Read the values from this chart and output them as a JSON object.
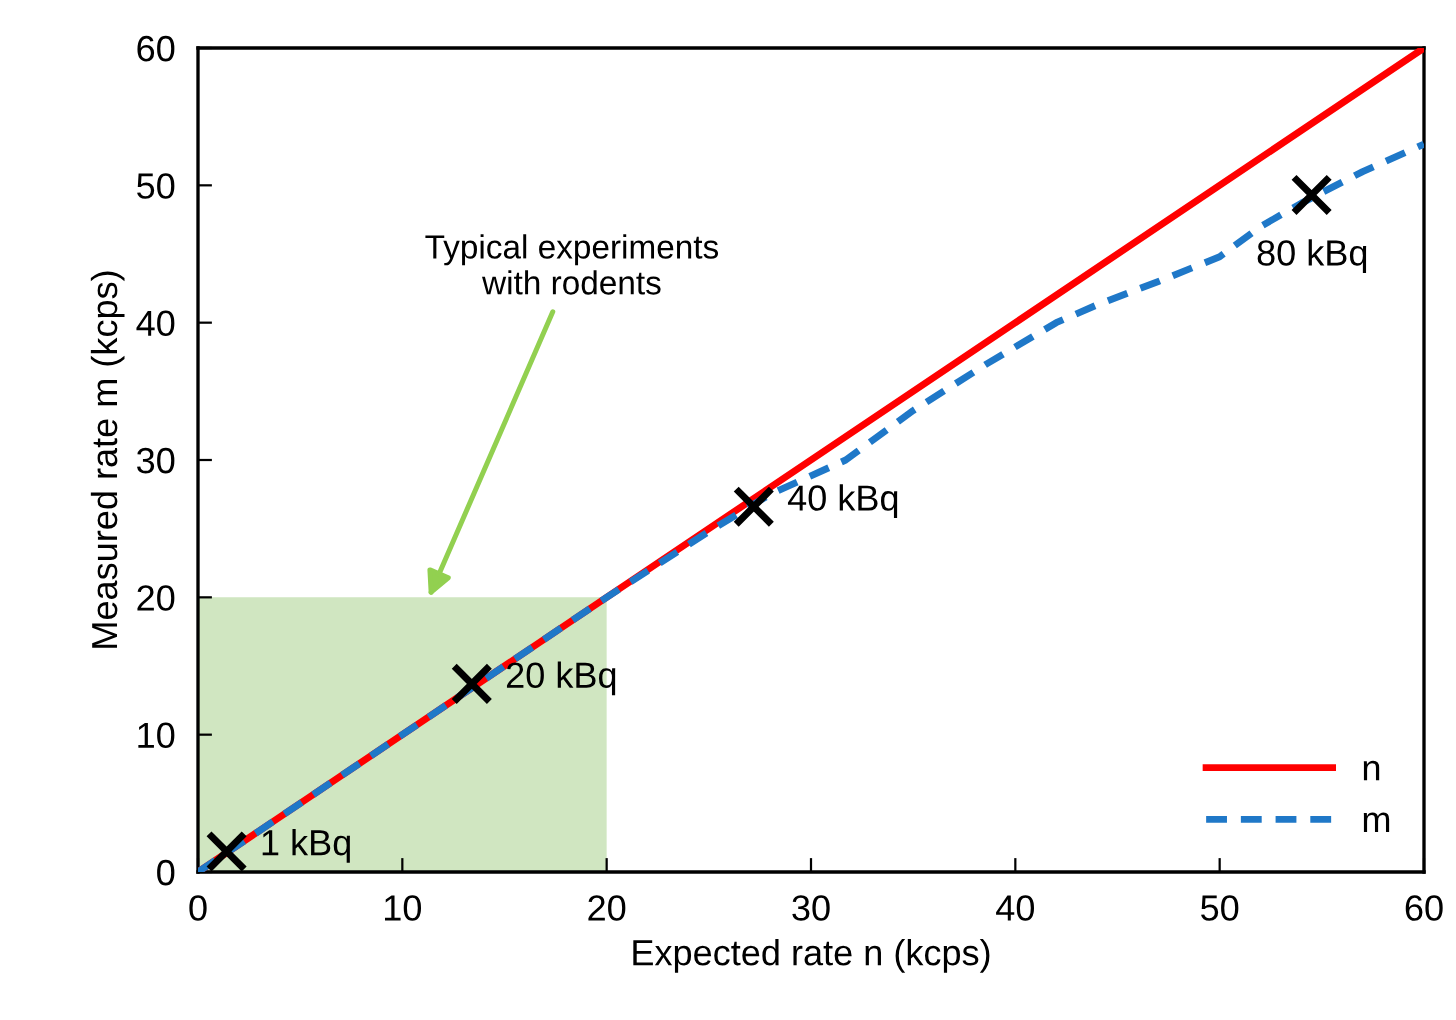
{
  "chart_data": {
    "type": "line",
    "xlabel": "Expected rate n (kcps)",
    "ylabel": "Measured rate m (kcps)",
    "xlim": [
      0,
      60
    ],
    "ylim": [
      0,
      60
    ],
    "xticks": [
      0,
      10,
      20,
      30,
      40,
      50,
      60
    ],
    "yticks": [
      0,
      10,
      20,
      30,
      40,
      50,
      60
    ],
    "grid": false,
    "legend": "bottom right",
    "series": [
      {
        "name": "n",
        "color": "#ff0000",
        "line_style": "solid",
        "x": [
          0,
          60
        ],
        "values": [
          0,
          60
        ]
      },
      {
        "name": "m",
        "color": "#1f78c8",
        "line_style": "dashed",
        "x": [
          0,
          10,
          20,
          25,
          28,
          31.7,
          35,
          38.6,
          42,
          44,
          47,
          50,
          52,
          54,
          57,
          60
        ],
        "values": [
          0,
          10,
          20,
          24.8,
          27.5,
          30.0,
          33.6,
          37.0,
          40.0,
          41.3,
          43.0,
          44.8,
          47.0,
          48.7,
          51.0,
          53.0
        ]
      },
      {
        "type": "scatter",
        "color": "#000000",
        "marker": "cross",
        "x": [
          1.4,
          13.4,
          27.2,
          54.5
        ],
        "values": [
          1.5,
          13.7,
          26.6,
          49.3
        ]
      },
      {
        "type": "area",
        "color": "#a9d18e",
        "x": [
          0,
          20
        ],
        "values": [
          20,
          20
        ]
      }
    ],
    "annotations": [
      {
        "text": "Typical experiments\nwith rodents",
        "x": 11.3,
        "y": 20
      },
      {
        "text": "1 kBq",
        "x": 1.4,
        "y": 1.5
      },
      {
        "text": "20 kBq",
        "x": 13.4,
        "y": 13.7
      },
      {
        "text": "40 kBq",
        "x": 27.2,
        "y": 26.6
      },
      {
        "text": "80 kBq",
        "x": 54.5,
        "y": 49.3
      }
    ]
  }
}
